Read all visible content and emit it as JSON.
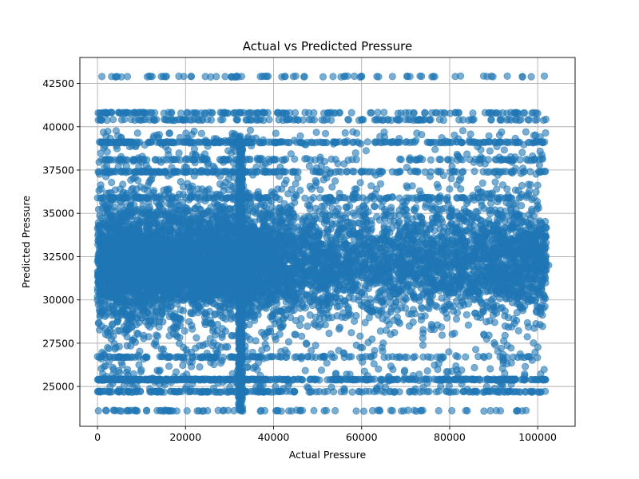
{
  "chart_data": {
    "type": "scatter",
    "title": "Actual vs Predicted Pressure",
    "xlabel": "Actual Pressure",
    "ylabel": "Predicted Pressure",
    "xlim": [
      -4000,
      108500
    ],
    "ylim": [
      22700,
      44000
    ],
    "x_ticks": [
      0,
      20000,
      40000,
      60000,
      80000,
      100000
    ],
    "x_tick_labels": [
      "0",
      "20000",
      "40000",
      "60000",
      "80000",
      "100000"
    ],
    "y_ticks": [
      25000,
      27500,
      30000,
      32500,
      35000,
      37500,
      40000,
      42500
    ],
    "y_tick_labels": [
      "25000",
      "27500",
      "30000",
      "32500",
      "35000",
      "37500",
      "40000",
      "42500"
    ],
    "grid": true,
    "marker_color": "#1f77b4",
    "marker_alpha": 0.6,
    "series": [
      {
        "points_sample": [
          [
            1000,
            42900
          ],
          [
            3200,
            42900
          ],
          [
            4500,
            42900
          ],
          [
            6800,
            42900
          ],
          [
            14500,
            42900
          ],
          [
            24500,
            42900
          ],
          [
            27000,
            42900
          ],
          [
            29000,
            42900
          ],
          [
            31500,
            42900
          ],
          [
            37000,
            42900
          ],
          [
            42500,
            42900
          ],
          [
            44500,
            42900
          ],
          [
            47000,
            42900
          ],
          [
            53500,
            42900
          ],
          [
            56000,
            42900
          ],
          [
            60000,
            42900
          ],
          [
            67000,
            42900
          ],
          [
            71000,
            42900
          ],
          [
            88500,
            42900
          ],
          [
            96500,
            42900
          ],
          [
            2000,
            40800
          ],
          [
            5000,
            40800
          ],
          [
            9000,
            40800
          ],
          [
            13000,
            40800
          ],
          [
            22000,
            40800
          ],
          [
            26000,
            40800
          ],
          [
            31000,
            40800
          ],
          [
            38000,
            40800
          ],
          [
            41000,
            40800
          ],
          [
            48000,
            40800
          ],
          [
            55000,
            40800
          ],
          [
            62000,
            40800
          ],
          [
            70000,
            40800
          ],
          [
            78000,
            40800
          ],
          [
            89000,
            40800
          ],
          [
            97000,
            40800
          ],
          [
            1000,
            40400
          ],
          [
            5500,
            40400
          ],
          [
            16000,
            40400
          ],
          [
            28000,
            40400
          ],
          [
            43000,
            40400
          ],
          [
            51000,
            40400
          ],
          [
            60000,
            40400
          ],
          [
            74000,
            40400
          ],
          [
            83000,
            40400
          ],
          [
            93000,
            40400
          ],
          [
            2000,
            23600
          ],
          [
            5000,
            23600
          ],
          [
            8500,
            23600
          ],
          [
            14500,
            23600
          ],
          [
            16500,
            23600
          ],
          [
            25000,
            23600
          ],
          [
            28500,
            23600
          ],
          [
            31000,
            23600
          ],
          [
            38000,
            23600
          ],
          [
            41000,
            23600
          ],
          [
            46000,
            23600
          ],
          [
            54000,
            23600
          ],
          [
            62500,
            23600
          ],
          [
            67000,
            23600
          ],
          [
            73500,
            23600
          ],
          [
            77500,
            23600
          ],
          [
            80500,
            23600
          ],
          [
            84000,
            23600
          ],
          [
            32500,
            35200
          ],
          [
            32500,
            31000
          ],
          [
            32500,
            27000
          ],
          [
            32500,
            25400
          ],
          [
            32500,
            38500
          ],
          [
            10000,
            32500
          ],
          [
            50000,
            32500
          ],
          [
            90000,
            32500
          ],
          [
            101500,
            31500
          ],
          [
            102500,
            32000
          ],
          [
            0,
            30000
          ]
        ]
      }
    ],
    "density_profile": {
      "x": [
        0,
        8000,
        20000,
        32500,
        45000,
        60000,
        80000,
        100000
      ],
      "relative_density": [
        1.0,
        0.95,
        0.75,
        0.9,
        0.45,
        0.35,
        0.4,
        0.55
      ]
    }
  }
}
